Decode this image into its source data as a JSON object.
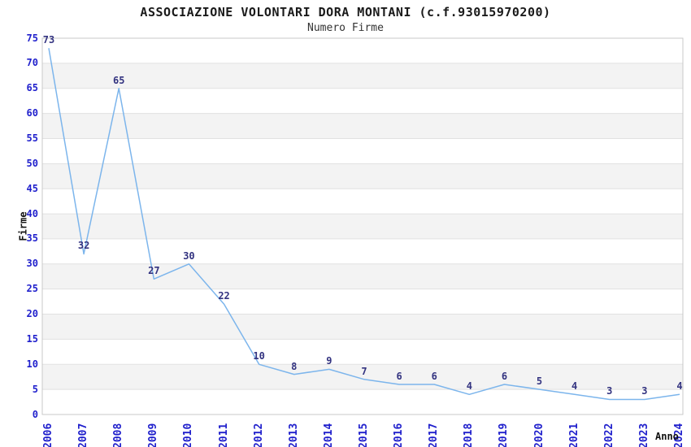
{
  "title": "ASSOCIAZIONE VOLONTARI DORA MONTANI (c.f.93015970200)",
  "subtitle": "Numero Firme",
  "chart_data": {
    "type": "line",
    "x": [
      "2006",
      "2007",
      "2008",
      "2009",
      "2010",
      "2011",
      "2012",
      "2013",
      "2014",
      "2015",
      "2016",
      "2017",
      "2018",
      "2019",
      "2020",
      "2021",
      "2022",
      "2023",
      "2024"
    ],
    "series": [
      {
        "name": "Numero Firme",
        "values": [
          73,
          32,
          65,
          27,
          30,
          22,
          10,
          8,
          9,
          7,
          6,
          6,
          4,
          6,
          5,
          4,
          3,
          3,
          4
        ]
      }
    ],
    "title": "ASSOCIAZIONE VOLONTARI DORA MONTANI (c.f.93015970200)",
    "subtitle": "Numero Firme",
    "xlabel": "Anno",
    "ylabel": "Firme",
    "ylim": [
      0,
      75
    ],
    "ytick_step": 5,
    "yticks": [
      0,
      5,
      10,
      15,
      20,
      25,
      30,
      35,
      40,
      45,
      50,
      55,
      60,
      65,
      70,
      75
    ],
    "legend": "none",
    "grid": "horizontal-bands",
    "data_labels_visible": true,
    "colors": {
      "line": "#7cb5ec",
      "axis_tick_label": "#1f1fcc",
      "data_label": "#333380",
      "band_fill": "#f3f3f3",
      "grid_line": "#e1e1e1",
      "plot_border": "#c9c9c9"
    }
  }
}
